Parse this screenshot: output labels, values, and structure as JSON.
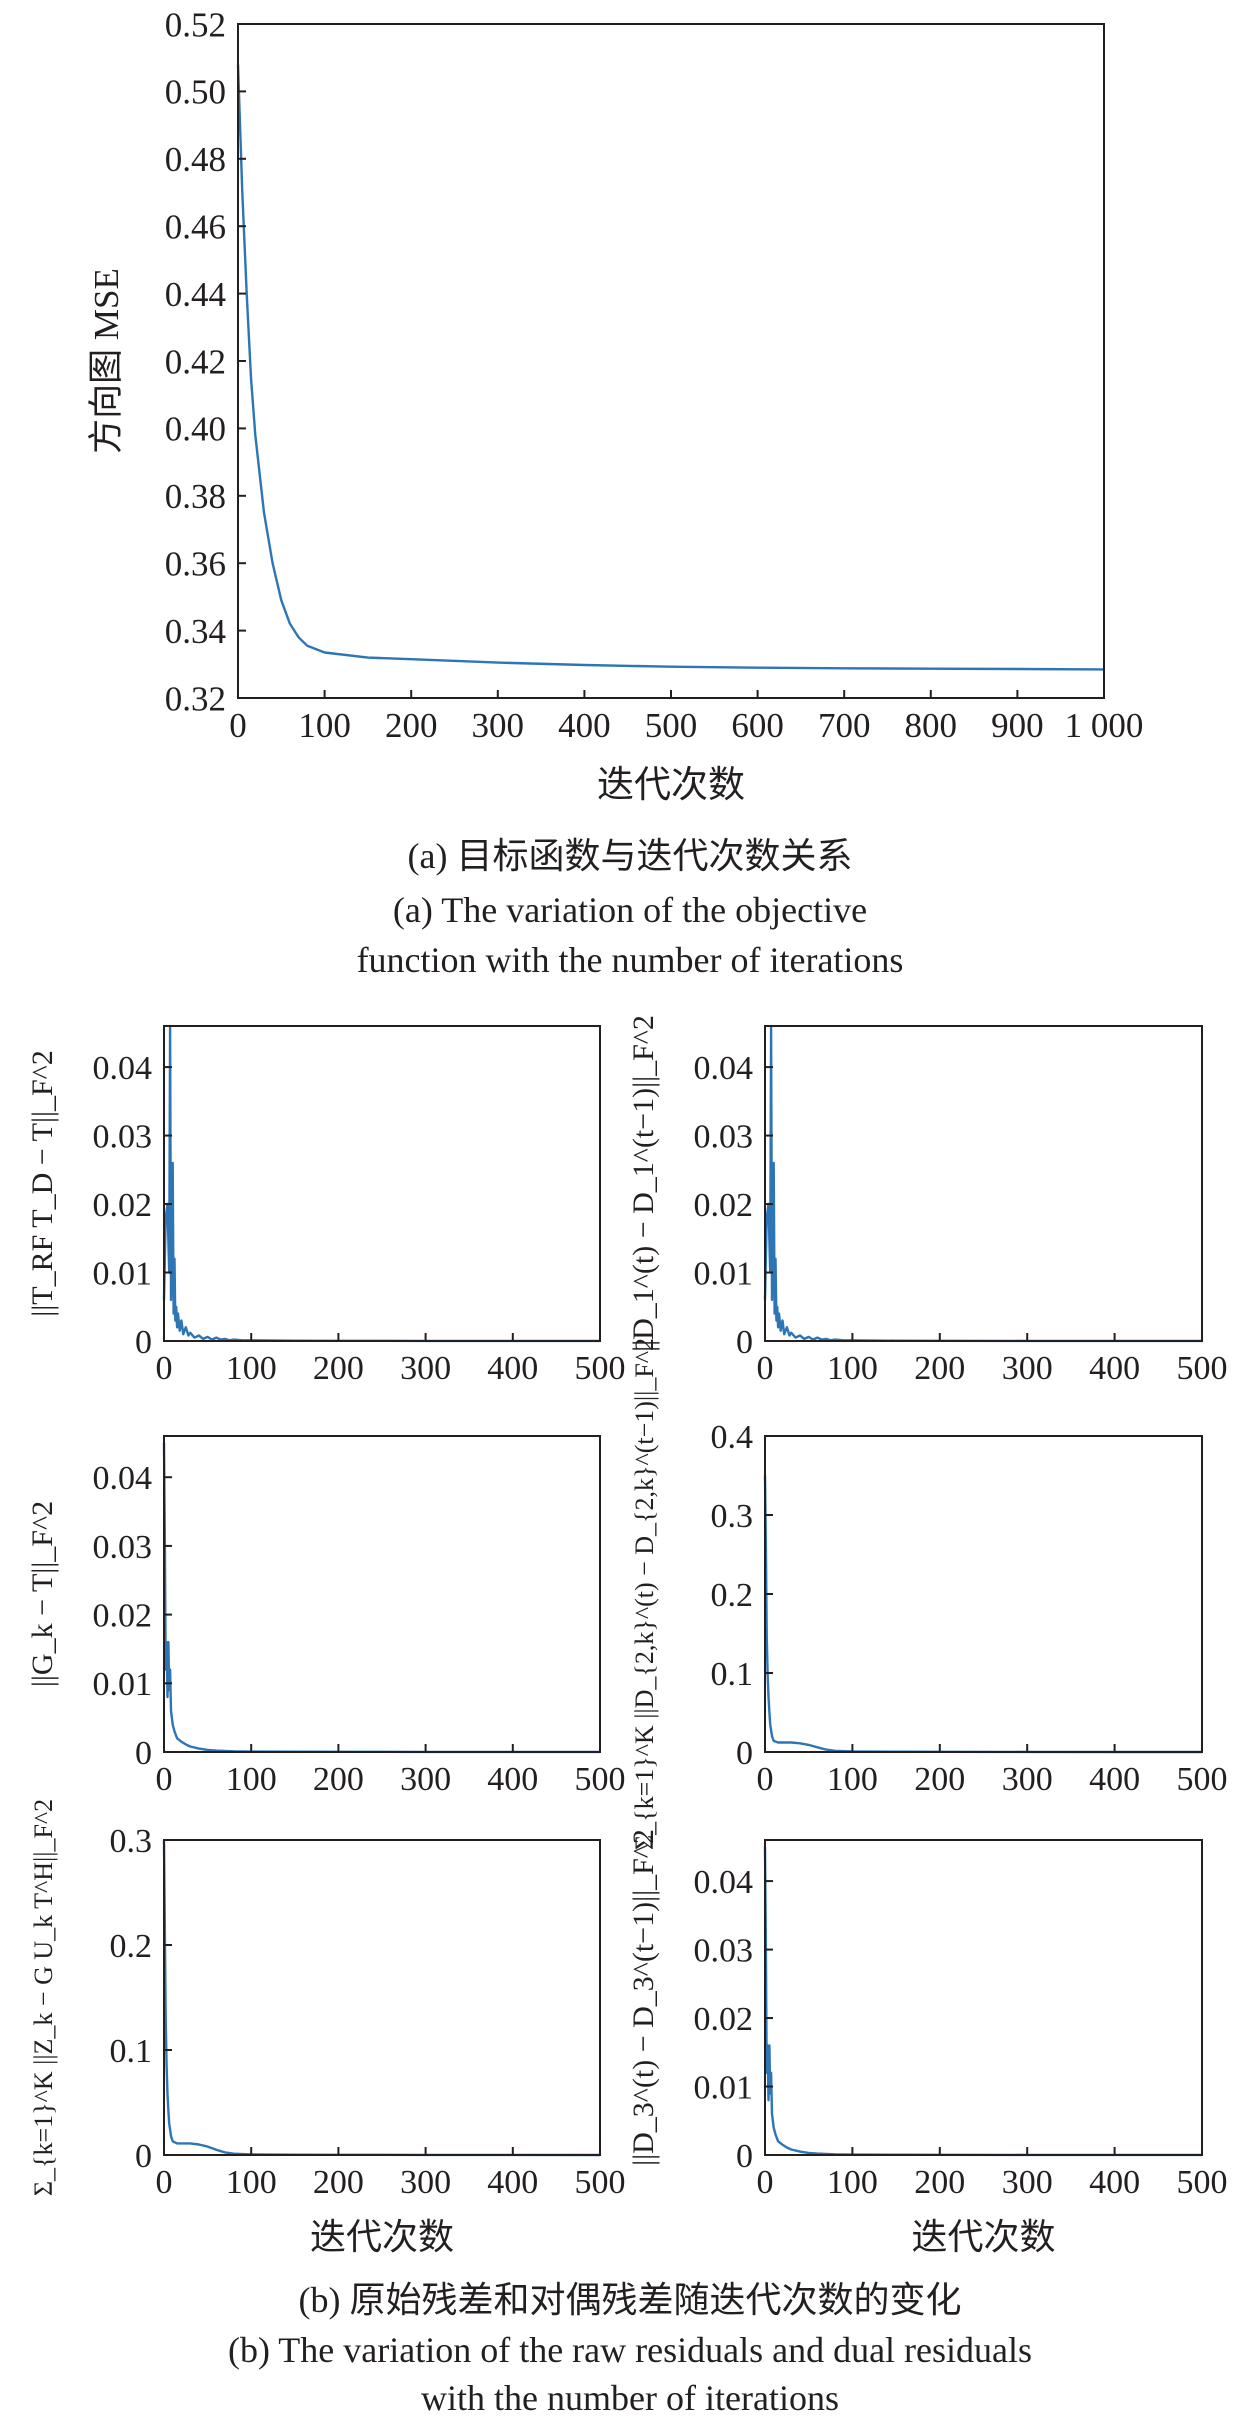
{
  "figure_a": {
    "caption_cn": "(a) 目标函数与迭代次数关系",
    "caption_en_line1": "(a) The variation of the objective",
    "caption_en_line2": "function with the number of iterations"
  },
  "figure_b": {
    "caption_cn": "(b) 原始残差和对偶残差随迭代次数的变化",
    "caption_en_line1": "(b) The variation of the raw residuals and dual residuals",
    "caption_en_line2": "with the number of iterations"
  },
  "colors": {
    "line": "#2e75b6",
    "axis": "#231f20"
  },
  "chart_data": [
    {
      "id": "a",
      "type": "line",
      "xlabel": "迭代次数",
      "ylabel": "方向图 MSE",
      "xlim": [
        0,
        1000
      ],
      "ylim": [
        0.32,
        0.52
      ],
      "xticks": [
        0,
        100,
        200,
        300,
        400,
        500,
        600,
        700,
        800,
        900,
        1000
      ],
      "xtick_labels": [
        "0",
        "100",
        "200",
        "300",
        "400",
        "500",
        "600",
        "700",
        "800",
        "900",
        "1 000"
      ],
      "yticks": [
        0.32,
        0.34,
        0.36,
        0.38,
        0.4,
        0.42,
        0.44,
        0.46,
        0.48,
        0.5,
        0.52
      ],
      "ytick_labels": [
        "0.32",
        "0.34",
        "0.36",
        "0.38",
        "0.40",
        "0.42",
        "0.44",
        "0.46",
        "0.48",
        "0.50",
        "0.52"
      ],
      "x": [
        0,
        5,
        10,
        15,
        20,
        30,
        40,
        50,
        60,
        70,
        80,
        100,
        150,
        200,
        300,
        400,
        500,
        600,
        700,
        800,
        900,
        1000
      ],
      "y": [
        0.508,
        0.47,
        0.44,
        0.415,
        0.398,
        0.375,
        0.36,
        0.349,
        0.342,
        0.338,
        0.3355,
        0.3335,
        0.332,
        0.3315,
        0.3305,
        0.3298,
        0.3293,
        0.329,
        0.3288,
        0.3287,
        0.3286,
        0.3285
      ]
    },
    {
      "id": "b1",
      "type": "line",
      "xlabel": "",
      "ylabel": "||T_RF T_D − T||_F^2",
      "xlim": [
        0,
        500
      ],
      "ylim": [
        0,
        0.046
      ],
      "xticks": [
        0,
        100,
        200,
        300,
        400,
        500
      ],
      "xtick_labels": [
        "0",
        "100",
        "200",
        "300",
        "400",
        "500"
      ],
      "yticks": [
        0,
        0.01,
        0.02,
        0.03,
        0.04
      ],
      "ytick_labels": [
        "0",
        "0.01",
        "0.02",
        "0.03",
        "0.04"
      ],
      "x": [
        0,
        2,
        4,
        6,
        7,
        8,
        9,
        10,
        11,
        12,
        13,
        14,
        15,
        16,
        18,
        20,
        22,
        25,
        28,
        30,
        35,
        40,
        45,
        50,
        55,
        60,
        65,
        70,
        75,
        80,
        90,
        100,
        150,
        200,
        300,
        400,
        500
      ],
      "y": [
        0.006,
        0.018,
        0.02,
        0.01,
        0.046,
        0.006,
        0.02,
        0.026,
        0.004,
        0.012,
        0.003,
        0.005,
        0.002,
        0.004,
        0.0015,
        0.003,
        0.001,
        0.002,
        0.0008,
        0.0012,
        0.0005,
        0.0008,
        0.0003,
        0.0006,
        0.0002,
        0.0005,
        0.0002,
        0.0003,
        0.0001,
        0.0002,
        0.0001,
        0.0001,
        5e-05,
        3e-05,
        2e-05,
        1e-05,
        1e-05
      ]
    },
    {
      "id": "b2",
      "type": "line",
      "xlabel": "",
      "ylabel": "||D_1^(t) − D_1^(t−1)||_F^2",
      "xlim": [
        0,
        500
      ],
      "ylim": [
        0,
        0.046
      ],
      "xticks": [
        0,
        100,
        200,
        300,
        400,
        500
      ],
      "xtick_labels": [
        "0",
        "100",
        "200",
        "300",
        "400",
        "500"
      ],
      "yticks": [
        0,
        0.01,
        0.02,
        0.03,
        0.04
      ],
      "ytick_labels": [
        "0",
        "0.01",
        "0.02",
        "0.03",
        "0.04"
      ],
      "x": [
        0,
        2,
        4,
        6,
        7,
        8,
        9,
        10,
        11,
        12,
        13,
        14,
        15,
        16,
        18,
        20,
        22,
        25,
        28,
        30,
        35,
        40,
        45,
        50,
        55,
        60,
        65,
        70,
        75,
        80,
        90,
        100,
        150,
        200,
        300,
        400,
        500
      ],
      "y": [
        0.006,
        0.018,
        0.02,
        0.01,
        0.046,
        0.006,
        0.02,
        0.026,
        0.004,
        0.012,
        0.003,
        0.005,
        0.002,
        0.004,
        0.0015,
        0.003,
        0.001,
        0.002,
        0.0008,
        0.0012,
        0.0005,
        0.0008,
        0.0003,
        0.0006,
        0.0002,
        0.0005,
        0.0002,
        0.0003,
        0.0001,
        0.0002,
        0.0001,
        0.0001,
        5e-05,
        3e-05,
        2e-05,
        1e-05,
        1e-05
      ]
    },
    {
      "id": "b3",
      "type": "line",
      "xlabel": "",
      "ylabel": "||G_k − T||_F^2",
      "xlim": [
        0,
        500
      ],
      "ylim": [
        0,
        0.046
      ],
      "xticks": [
        0,
        100,
        200,
        300,
        400,
        500
      ],
      "xtick_labels": [
        "0",
        "100",
        "200",
        "300",
        "400",
        "500"
      ],
      "yticks": [
        0,
        0.01,
        0.02,
        0.03,
        0.04
      ],
      "ytick_labels": [
        "0",
        "0.01",
        "0.02",
        "0.03",
        "0.04"
      ],
      "x": [
        0,
        1,
        2,
        3,
        4,
        5,
        6,
        7,
        8,
        10,
        12,
        15,
        20,
        25,
        30,
        40,
        50,
        60,
        80,
        100,
        150,
        200,
        300,
        400,
        500
      ],
      "y": [
        0.045,
        0.03,
        0.012,
        0.016,
        0.008,
        0.016,
        0.009,
        0.012,
        0.006,
        0.004,
        0.003,
        0.002,
        0.0015,
        0.0011,
        0.0008,
        0.0005,
        0.0003,
        0.0002,
        0.0001,
        6e-05,
        4e-05,
        3e-05,
        2e-05,
        1e-05,
        1e-05
      ]
    },
    {
      "id": "b4",
      "type": "line",
      "xlabel": "",
      "ylabel": "Σ_{k=1}^K ||D_{2,k}^(t) − D_{2,k}^(t−1)||_F^2",
      "xlim": [
        0,
        500
      ],
      "ylim": [
        0,
        0.4
      ],
      "xticks": [
        0,
        100,
        200,
        300,
        400,
        500
      ],
      "xtick_labels": [
        "0",
        "100",
        "200",
        "300",
        "400",
        "500"
      ],
      "yticks": [
        0,
        0.1,
        0.2,
        0.3,
        0.4
      ],
      "ytick_labels": [
        "0",
        "0.1",
        "0.2",
        "0.3",
        "0.4"
      ],
      "x": [
        0,
        1,
        2,
        3,
        4,
        5,
        6,
        8,
        10,
        15,
        20,
        30,
        40,
        50,
        60,
        70,
        80,
        100,
        150,
        200,
        300,
        400,
        500
      ],
      "y": [
        0.35,
        0.26,
        0.15,
        0.1,
        0.07,
        0.05,
        0.035,
        0.02,
        0.014,
        0.012,
        0.012,
        0.012,
        0.011,
        0.009,
        0.006,
        0.003,
        0.0015,
        0.0008,
        0.0004,
        0.0002,
        0.0001,
        5e-05,
        3e-05
      ]
    },
    {
      "id": "b5",
      "type": "line",
      "xlabel": "迭代次数",
      "ylabel": "Σ_{k=1}^K ||Z_k − G U_k T^H||_F^2",
      "xlim": [
        0,
        500
      ],
      "ylim": [
        0,
        0.3
      ],
      "xticks": [
        0,
        100,
        200,
        300,
        400,
        500
      ],
      "xtick_labels": [
        "0",
        "100",
        "200",
        "300",
        "400",
        "500"
      ],
      "yticks": [
        0,
        0.1,
        0.2,
        0.3
      ],
      "ytick_labels": [
        "0",
        "0.1",
        "0.2",
        "0.3"
      ],
      "x": [
        0,
        1,
        2,
        3,
        4,
        5,
        6,
        8,
        10,
        15,
        20,
        30,
        40,
        50,
        60,
        70,
        80,
        100,
        150,
        200,
        300,
        400,
        500
      ],
      "y": [
        0.3,
        0.21,
        0.13,
        0.085,
        0.058,
        0.042,
        0.03,
        0.018,
        0.013,
        0.011,
        0.011,
        0.011,
        0.01,
        0.008,
        0.005,
        0.0025,
        0.0012,
        0.0006,
        0.0003,
        0.0002,
        0.0001,
        5e-05,
        3e-05
      ]
    },
    {
      "id": "b6",
      "type": "line",
      "xlabel": "迭代次数",
      "ylabel": "||D_3^(t) − D_3^(t−1)||_F^2",
      "xlim": [
        0,
        500
      ],
      "ylim": [
        0,
        0.046
      ],
      "xticks": [
        0,
        100,
        200,
        300,
        400,
        500
      ],
      "xtick_labels": [
        "0",
        "100",
        "200",
        "300",
        "400",
        "500"
      ],
      "yticks": [
        0,
        0.01,
        0.02,
        0.03,
        0.04
      ],
      "ytick_labels": [
        "0",
        "0.01",
        "0.02",
        "0.03",
        "0.04"
      ],
      "x": [
        0,
        1,
        2,
        3,
        4,
        5,
        6,
        7,
        8,
        10,
        12,
        15,
        20,
        25,
        30,
        40,
        50,
        60,
        80,
        100,
        150,
        200,
        300,
        400,
        500
      ],
      "y": [
        0.045,
        0.03,
        0.012,
        0.016,
        0.008,
        0.016,
        0.009,
        0.012,
        0.006,
        0.004,
        0.003,
        0.002,
        0.0015,
        0.0011,
        0.0008,
        0.0005,
        0.0003,
        0.0002,
        0.0001,
        6e-05,
        4e-05,
        3e-05,
        2e-05,
        1e-05,
        1e-05
      ]
    }
  ]
}
